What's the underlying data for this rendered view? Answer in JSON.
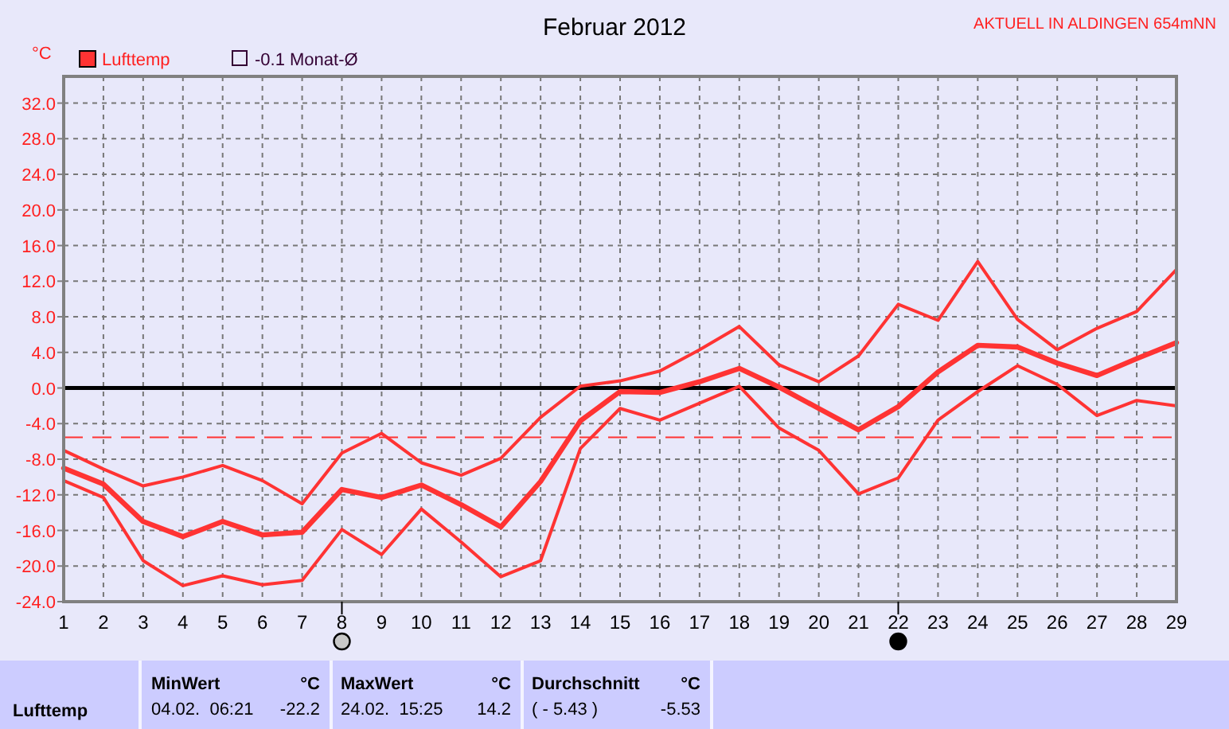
{
  "chart_data": {
    "type": "line",
    "title": "Februar 2012",
    "subtitle": "AKTUELL IN ALDINGEN 654mNN",
    "ylabel": "°C",
    "x": [
      1,
      2,
      3,
      4,
      5,
      6,
      7,
      8,
      9,
      10,
      11,
      12,
      13,
      14,
      15,
      16,
      17,
      18,
      19,
      20,
      21,
      22,
      23,
      24,
      25,
      26,
      27,
      28,
      29
    ],
    "xlim": [
      1,
      29
    ],
    "xticks": [
      1,
      2,
      3,
      4,
      5,
      6,
      7,
      8,
      9,
      10,
      11,
      12,
      13,
      14,
      15,
      16,
      17,
      18,
      19,
      20,
      21,
      22,
      23,
      24,
      25,
      26,
      27,
      28,
      29
    ],
    "ylim": [
      -24,
      35
    ],
    "yticks": [
      {
        "value": -24,
        "label": "-24.0"
      },
      {
        "value": -20,
        "label": "-20.0"
      },
      {
        "value": -16,
        "label": "-16.0"
      },
      {
        "value": -12,
        "label": "-12.0"
      },
      {
        "value": -8,
        "label": "-8.0"
      },
      {
        "value": -4,
        "label": "-4.0"
      },
      {
        "value": 0,
        "label": "0.0"
      },
      {
        "value": 4,
        "label": "4.0"
      },
      {
        "value": 8,
        "label": "8.0"
      },
      {
        "value": 12,
        "label": "12.0"
      },
      {
        "value": 16,
        "label": "16.0"
      },
      {
        "value": 20,
        "label": "20.0"
      },
      {
        "value": 24,
        "label": "24.0"
      },
      {
        "value": 28,
        "label": "28.0"
      },
      {
        "value": 32,
        "label": "32.0"
      }
    ],
    "grid": true,
    "legend": "top left",
    "marker": "none",
    "line_style": "solid",
    "series": [
      {
        "color": "#ff3333",
        "values": [
          -7.0,
          -9.1,
          -11.0,
          -10.0,
          -8.7,
          -10.4,
          -13.0,
          -7.3,
          -5.1,
          -8.4,
          -9.8,
          -7.9,
          -3.3,
          0.2,
          0.8,
          1.9,
          4.3,
          6.9,
          2.6,
          0.7,
          3.6,
          9.4,
          7.6,
          14.2,
          7.7,
          4.3,
          6.7,
          8.6,
          13.3
        ]
      },
      {
        "name": "Lufttemp",
        "color": "#ff3333",
        "values": [
          -9.0,
          -10.8,
          -15.0,
          -16.7,
          -15.0,
          -16.5,
          -16.2,
          -11.4,
          -12.3,
          -10.9,
          -13.1,
          -15.6,
          -10.5,
          -3.7,
          -0.4,
          -0.5,
          0.7,
          2.2,
          0.1,
          -2.3,
          -4.7,
          -2.1,
          1.8,
          4.8,
          4.6,
          2.8,
          1.4,
          3.3,
          5.1
        ]
      },
      {
        "color": "#ff3333",
        "values": [
          -10.4,
          -12.3,
          -19.4,
          -22.2,
          -21.1,
          -22.1,
          -21.6,
          -15.9,
          -18.7,
          -13.6,
          -17.3,
          -21.2,
          -19.4,
          -6.8,
          -2.3,
          -3.6,
          -1.7,
          0.2,
          -4.5,
          -7.0,
          -11.9,
          -10.1,
          -3.6,
          -0.4,
          2.5,
          0.4,
          -3.1,
          -1.4,
          -2.0
        ]
      }
    ],
    "ref_lines": [
      {
        "axis": "y",
        "value": 0,
        "color": "#000000",
        "line_style": "solid"
      },
      {
        "axis": "y",
        "value": -5.53,
        "color": "#ff3333",
        "line_style": "dashed"
      }
    ],
    "annotations": [
      "Lufttemp",
      "MinWert",
      "°C",
      "04.02.  06:21",
      "-22.2",
      "MaxWert",
      "°C",
      "24.02.  15:25",
      "14.2",
      "Durchschnitt",
      "°C",
      "( - 5.43 )",
      "-5.53",
      "-0.1 Monat-Ø"
    ]
  }
}
